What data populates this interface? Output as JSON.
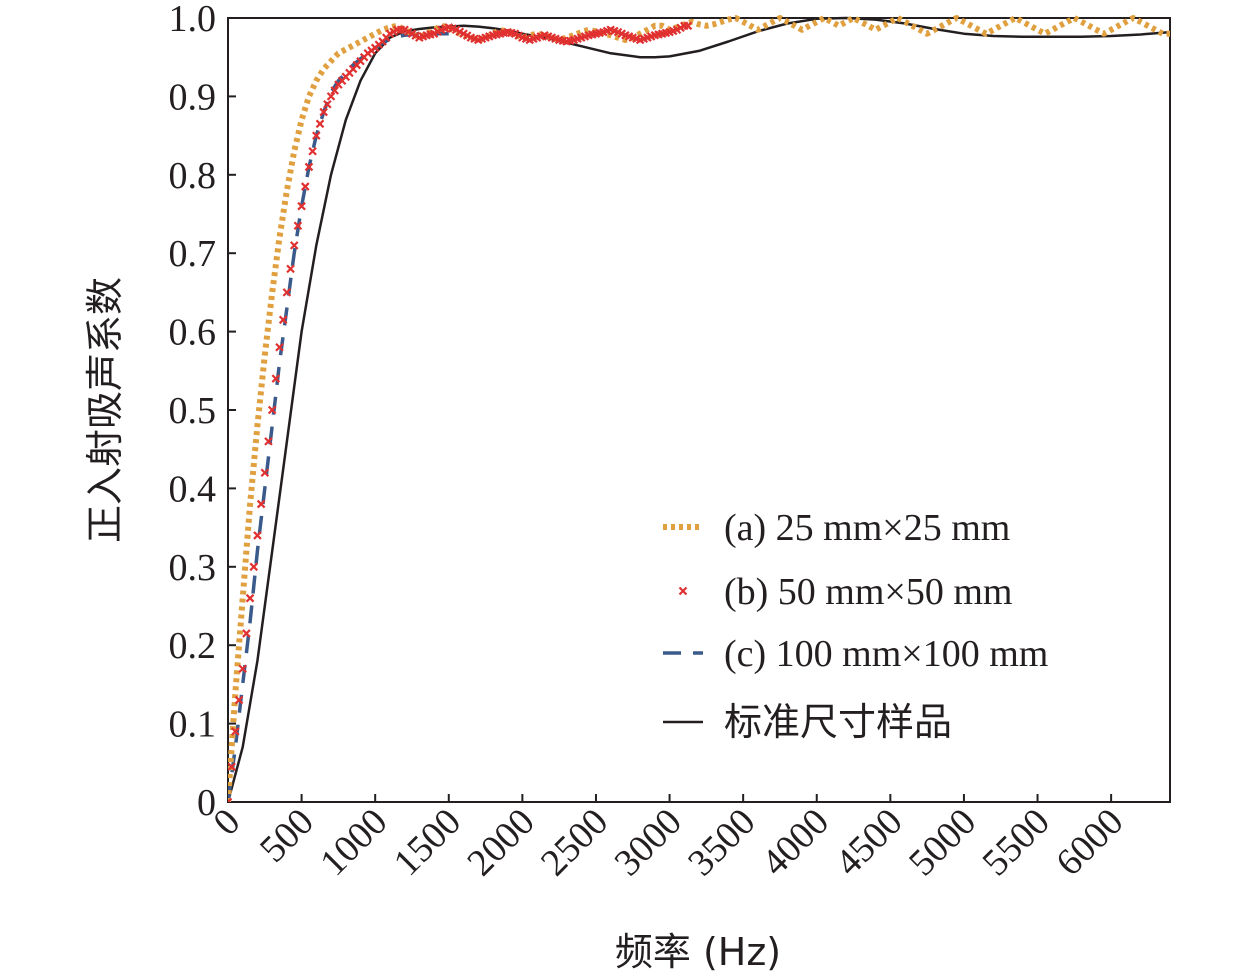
{
  "chart_data": {
    "type": "line",
    "title": "",
    "xlabel": "频率 (Hz)",
    "ylabel": "正入射吸声系数",
    "xlim": [
      0,
      6400
    ],
    "ylim": [
      0,
      1.0
    ],
    "x_ticks": [
      "0",
      "500",
      "1000",
      "1500",
      "2000",
      "2500",
      "3000",
      "3500",
      "4000",
      "4500",
      "5000",
      "5500",
      "6000"
    ],
    "y_ticks": [
      "0",
      "0.1",
      "0.2",
      "0.3",
      "0.4",
      "0.5",
      "0.6",
      "0.7",
      "0.8",
      "0.9",
      "1.0"
    ],
    "grid": false,
    "legend_position": "lower-right",
    "series": [
      {
        "name": "(a) 25 mm×25 mm",
        "style": "dotted",
        "color": "#e0a040",
        "x": [
          0,
          50,
          100,
          150,
          200,
          250,
          300,
          350,
          400,
          450,
          500,
          550,
          600,
          650,
          700,
          750,
          800,
          850,
          900,
          950,
          1000,
          1050,
          1100,
          1150,
          1200,
          1250,
          1300,
          1350,
          1400,
          1450,
          1500,
          1550,
          1600,
          1650,
          1700,
          1750,
          1800,
          1850,
          1900,
          1950,
          2000,
          2050,
          2100,
          2150,
          2200,
          2250,
          2300,
          2350,
          2400,
          2450,
          2500,
          2550,
          2600,
          2650,
          2700,
          2750,
          2800,
          2850,
          2900,
          2950,
          3000,
          3050,
          3100,
          3150,
          3200,
          3250,
          3300,
          3350,
          3400,
          3450,
          3500,
          3550,
          3600,
          3650,
          3700,
          3750,
          3800,
          3850,
          3900,
          3950,
          4000,
          4050,
          4100,
          4150,
          4200,
          4250,
          4300,
          4350,
          4400,
          4450,
          4500,
          4550,
          4600,
          4650,
          4700,
          4750,
          4800,
          4850,
          4900,
          4950,
          5000,
          5050,
          5100,
          5150,
          5200,
          5250,
          5300,
          5350,
          5400,
          5450,
          5500,
          5550,
          5600,
          5650,
          5700,
          5750,
          5800,
          5850,
          5900,
          5950,
          6000,
          6050,
          6100,
          6150,
          6200,
          6250,
          6300,
          6350,
          6400
        ],
        "values": [
          0.0,
          0.14,
          0.26,
          0.38,
          0.48,
          0.57,
          0.65,
          0.72,
          0.78,
          0.83,
          0.87,
          0.9,
          0.92,
          0.935,
          0.945,
          0.955,
          0.96,
          0.965,
          0.97,
          0.975,
          0.98,
          0.985,
          0.988,
          0.99,
          0.985,
          0.98,
          0.975,
          0.98,
          0.985,
          0.99,
          0.988,
          0.982,
          0.978,
          0.975,
          0.972,
          0.975,
          0.98,
          0.985,
          0.982,
          0.978,
          0.975,
          0.978,
          0.98,
          0.978,
          0.975,
          0.972,
          0.975,
          0.978,
          0.982,
          0.985,
          0.983,
          0.98,
          0.978,
          0.975,
          0.972,
          0.975,
          0.98,
          0.985,
          0.99,
          0.99,
          0.985,
          0.988,
          0.992,
          0.995,
          0.992,
          0.99,
          0.992,
          0.995,
          0.998,
          1.0,
          0.995,
          0.99,
          0.985,
          0.99,
          0.995,
          1.0,
          0.995,
          0.99,
          0.985,
          0.99,
          0.995,
          1.0,
          0.995,
          0.99,
          0.995,
          1.0,
          0.995,
          0.99,
          0.985,
          0.99,
          0.995,
          1.0,
          0.995,
          0.99,
          0.985,
          0.98,
          0.985,
          0.99,
          0.995,
          1.0,
          0.995,
          0.99,
          0.985,
          0.98,
          0.985,
          0.99,
          0.995,
          1.0,
          0.995,
          0.99,
          0.985,
          0.98,
          0.985,
          0.99,
          0.995,
          1.0,
          0.995,
          0.99,
          0.985,
          0.98,
          0.985,
          0.99,
          0.995,
          1.0,
          0.995,
          0.99,
          0.985,
          0.98,
          0.98
        ]
      },
      {
        "name": "(b) 50 mm×50 mm",
        "style": "x-markers",
        "color": "#e03030",
        "x": [
          0,
          50,
          100,
          150,
          200,
          250,
          300,
          350,
          400,
          450,
          500,
          550,
          600,
          650,
          700,
          750,
          800,
          850,
          900,
          950,
          1000,
          1050,
          1100,
          1150,
          1200,
          1250,
          1300,
          1350,
          1400,
          1450,
          1500,
          1550,
          1600,
          1650,
          1700,
          1750,
          1800,
          1850,
          1900,
          1950,
          2000,
          2050,
          2100,
          2150,
          2200,
          2250,
          2300,
          2350,
          2400,
          2450,
          2500,
          2550,
          2600,
          2650,
          2700,
          2750,
          2800,
          2850,
          2900,
          2950,
          3000,
          3050,
          3100,
          3150
        ],
        "values": [
          0.0,
          0.09,
          0.17,
          0.26,
          0.34,
          0.42,
          0.5,
          0.58,
          0.65,
          0.71,
          0.76,
          0.81,
          0.85,
          0.88,
          0.9,
          0.915,
          0.925,
          0.935,
          0.945,
          0.955,
          0.962,
          0.97,
          0.98,
          0.985,
          0.985,
          0.98,
          0.975,
          0.978,
          0.98,
          0.985,
          0.988,
          0.985,
          0.98,
          0.975,
          0.972,
          0.975,
          0.978,
          0.98,
          0.982,
          0.98,
          0.975,
          0.972,
          0.975,
          0.978,
          0.975,
          0.972,
          0.97,
          0.972,
          0.975,
          0.978,
          0.98,
          0.982,
          0.985,
          0.982,
          0.978,
          0.975,
          0.972,
          0.975,
          0.978,
          0.98,
          0.982,
          0.985,
          0.99,
          0.99
        ]
      },
      {
        "name": "(c) 100 mm×100 mm",
        "style": "dashed",
        "color": "#3a5a8c",
        "x": [
          0,
          50,
          100,
          150,
          200,
          250,
          300,
          350,
          400,
          450,
          500,
          550,
          600,
          650,
          700,
          750,
          800,
          850,
          900,
          950,
          1000,
          1050,
          1100,
          1150,
          1200,
          1250,
          1300,
          1350,
          1400,
          1450,
          1500,
          1550,
          1600
        ],
        "values": [
          0.0,
          0.07,
          0.15,
          0.23,
          0.32,
          0.4,
          0.48,
          0.56,
          0.63,
          0.7,
          0.76,
          0.81,
          0.85,
          0.88,
          0.905,
          0.92,
          0.93,
          0.94,
          0.948,
          0.955,
          0.962,
          0.968,
          0.973,
          0.976,
          0.978,
          0.979,
          0.98,
          0.98,
          0.98,
          0.98,
          0.98,
          0.98,
          0.98
        ]
      },
      {
        "name": "标准尺寸样品",
        "style": "solid",
        "color": "#231f20",
        "x": [
          0,
          100,
          200,
          300,
          400,
          500,
          600,
          700,
          800,
          900,
          1000,
          1100,
          1200,
          1300,
          1400,
          1500,
          1600,
          1700,
          1800,
          1900,
          2000,
          2200,
          2400,
          2600,
          2800,
          2900,
          3000,
          3200,
          3400,
          3600,
          3800,
          4000,
          4200,
          4400,
          4600,
          4800,
          5000,
          5200,
          5400,
          5600,
          5800,
          6000,
          6200,
          6400
        ],
        "values": [
          0.0,
          0.07,
          0.18,
          0.32,
          0.46,
          0.6,
          0.71,
          0.8,
          0.87,
          0.92,
          0.955,
          0.975,
          0.983,
          0.986,
          0.988,
          0.989,
          0.99,
          0.989,
          0.987,
          0.984,
          0.98,
          0.973,
          0.964,
          0.955,
          0.95,
          0.95,
          0.951,
          0.958,
          0.97,
          0.983,
          0.993,
          0.999,
          1.0,
          0.998,
          0.993,
          0.986,
          0.98,
          0.977,
          0.976,
          0.976,
          0.976,
          0.977,
          0.979,
          0.982
        ]
      }
    ]
  }
}
